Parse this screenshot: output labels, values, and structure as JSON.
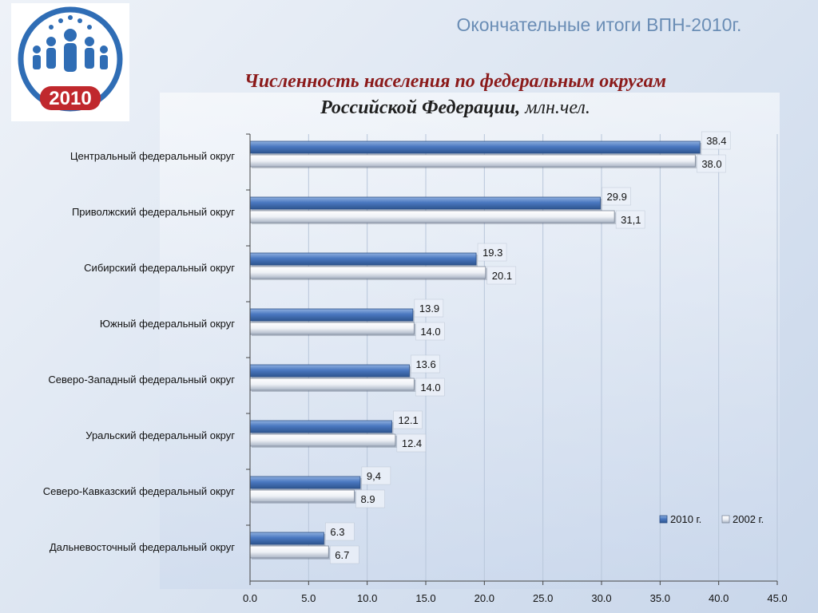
{
  "header": {
    "title": "Окончательные итоги ВПН-2010г.",
    "logo_text": "2010"
  },
  "colors": {
    "series_2010": "#4a78c0",
    "series_2002": "#f2f4f8",
    "logo_blue": "#2f6db5",
    "logo_red": "#c0282d"
  },
  "chart_data": {
    "type": "bar",
    "orientation": "horizontal",
    "title": "Численность населения по федеральным округам",
    "title_line2": "Российской Федерации,",
    "unit": "млн.чел.",
    "categories": [
      "Центральный федеральный округ",
      "Приволжский федеральный округ",
      "Сибирский федеральный округ",
      "Южный федеральный округ",
      "Северо-Западный федеральный округ",
      "Уральский федеральный округ",
      "Северо-Кавказский федеральный округ",
      "Дальневосточный федеральный округ"
    ],
    "series": [
      {
        "name": "2010 г.",
        "values": [
          38.4,
          29.9,
          19.3,
          13.9,
          13.6,
          12.1,
          9.4,
          6.3
        ],
        "labels": [
          "38.4",
          "29.9",
          "19.3",
          "13.9",
          "13.6",
          "12.1",
          "9,4",
          "6.3"
        ]
      },
      {
        "name": "2002 г.",
        "values": [
          38.0,
          31.1,
          20.1,
          14.0,
          14.0,
          12.4,
          8.9,
          6.7
        ],
        "labels": [
          "38.0",
          "31,1",
          "20.1",
          "14.0",
          "14.0",
          "12.4",
          "8.9",
          "6.7"
        ]
      }
    ],
    "xlim": [
      0,
      45
    ],
    "xticks": [
      "0.0",
      "5.0",
      "10.0",
      "15.0",
      "20.0",
      "25.0",
      "30.0",
      "35.0",
      "40.0",
      "45.0"
    ],
    "grid": true,
    "legend": "bottom-right"
  }
}
